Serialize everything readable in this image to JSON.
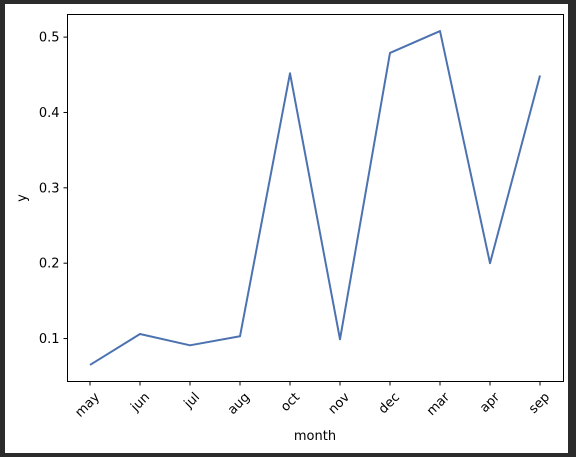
{
  "chart_data": {
    "type": "line",
    "title": "",
    "xlabel": "month",
    "ylabel": "y",
    "categories": [
      "may",
      "jun",
      "jul",
      "aug",
      "oct",
      "nov",
      "dec",
      "mar",
      "apr",
      "sep"
    ],
    "series": [
      {
        "values": [
          0.065,
          0.106,
          0.091,
          0.103,
          0.452,
          0.099,
          0.479,
          0.508,
          0.2,
          0.449
        ],
        "color": "#4c72b0"
      }
    ],
    "ylim": [
      0.043,
      0.53
    ],
    "yticks": [
      0.1,
      0.2,
      0.3,
      0.4,
      0.5
    ],
    "ytick_labels": [
      "0.1",
      "0.2",
      "0.3",
      "0.4",
      "0.5"
    ],
    "xtick_rotation": 45,
    "grid": false,
    "legend": "none"
  }
}
